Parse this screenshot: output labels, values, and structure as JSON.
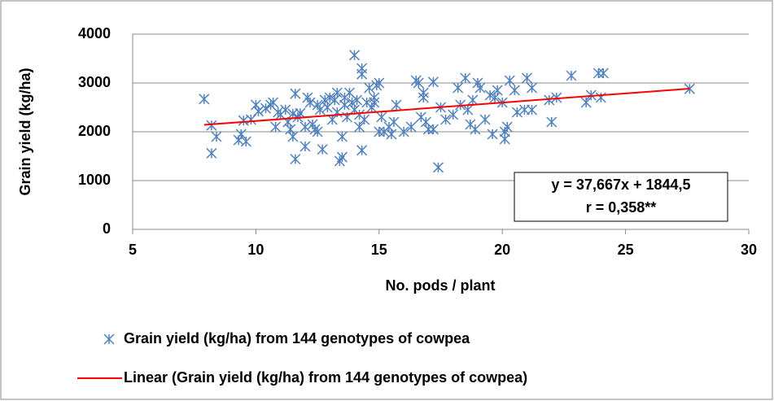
{
  "chart_data": {
    "type": "scatter",
    "x_label": "No. pods / plant",
    "y_label": "Grain yield (kg/ha)",
    "annotation": [
      "y = 37,667x + 1844,5",
      "r = 0,358**"
    ],
    "xlim": [
      5,
      30
    ],
    "xticks": [
      5,
      10,
      15,
      20,
      25,
      30
    ],
    "ylim": [
      0,
      4000
    ],
    "yticks": [
      0,
      1000,
      2000,
      3000,
      4000
    ],
    "grid": true,
    "series": [
      {
        "name": "Grain yield (kg/ha) from 144 genotypes of cowpea",
        "color": "#4f81bd",
        "marker": "star",
        "x": [
          7.9,
          8.2,
          8.2,
          8.4,
          9.3,
          9.4,
          9.5,
          9.6,
          9.8,
          10.0,
          10.1,
          10.4,
          10.6,
          10.7,
          10.8,
          10.9,
          11.0,
          11.2,
          11.3,
          11.4,
          11.5,
          11.5,
          11.6,
          11.6,
          11.7,
          11.8,
          12.0,
          12.0,
          12.1,
          12.2,
          12.3,
          12.4,
          12.5,
          12.5,
          12.6,
          12.7,
          12.8,
          12.9,
          13.0,
          13.1,
          13.2,
          13.3,
          13.3,
          13.4,
          13.5,
          13.5,
          13.6,
          13.6,
          13.7,
          13.8,
          13.9,
          14.0,
          14.0,
          14.1,
          14.2,
          14.2,
          14.3,
          14.3,
          14.3,
          14.4,
          14.5,
          14.6,
          14.7,
          14.8,
          14.8,
          14.9,
          15.0,
          15.0,
          15.1,
          15.2,
          15.4,
          15.5,
          15.6,
          15.7,
          16.0,
          16.3,
          16.5,
          16.6,
          16.7,
          16.8,
          16.8,
          16.9,
          17.0,
          17.2,
          17.2,
          17.4,
          17.5,
          17.7,
          18.0,
          18.2,
          18.3,
          18.5,
          18.6,
          18.7,
          18.8,
          18.9,
          19.0,
          19.1,
          19.3,
          19.5,
          19.6,
          19.7,
          19.8,
          20.0,
          20.1,
          20.1,
          20.2,
          20.3,
          20.5,
          20.6,
          20.9,
          21.0,
          21.2,
          21.2,
          21.9,
          22.0,
          22.2,
          22.8,
          23.4,
          23.6,
          23.9,
          24.0,
          24.1,
          27.6
        ],
        "values": [
          2670,
          2130,
          1560,
          1900,
          1830,
          1950,
          2230,
          1800,
          2250,
          2550,
          2420,
          2480,
          2550,
          2600,
          2100,
          2400,
          2350,
          2450,
          2200,
          2050,
          1900,
          2370,
          1440,
          2780,
          2300,
          2380,
          1700,
          2100,
          2700,
          2600,
          2150,
          2050,
          2000,
          2550,
          2450,
          1640,
          2650,
          2500,
          2700,
          2250,
          2650,
          2800,
          2400,
          1400,
          1480,
          1900,
          2700,
          2550,
          2300,
          2800,
          2600,
          3570,
          2450,
          2650,
          2350,
          2100,
          3300,
          3180,
          1620,
          2250,
          2600,
          2900,
          2500,
          2700,
          2600,
          2950,
          3000,
          2000,
          2300,
          2000,
          2100,
          1950,
          2200,
          2550,
          2000,
          2100,
          3050,
          3000,
          2300,
          2800,
          2700,
          2200,
          2050,
          3020,
          2050,
          1270,
          2500,
          2250,
          2350,
          2900,
          2550,
          3100,
          2450,
          2150,
          2650,
          2050,
          3000,
          2900,
          2250,
          2750,
          1950,
          2700,
          2850,
          2600,
          2000,
          1850,
          2100,
          3050,
          2850,
          2400,
          2450,
          3100,
          2450,
          2900,
          2650,
          2200,
          2700,
          3150,
          2600,
          2750,
          3200,
          2700,
          3200,
          2880
        ]
      },
      {
        "name": "Linear (Grain yield (kg/ha) from 144 genotypes of cowpea)",
        "color": "#ff0000",
        "marker": "line",
        "x": [
          7.9,
          27.6
        ],
        "values": [
          2142,
          2884
        ]
      }
    ]
  }
}
